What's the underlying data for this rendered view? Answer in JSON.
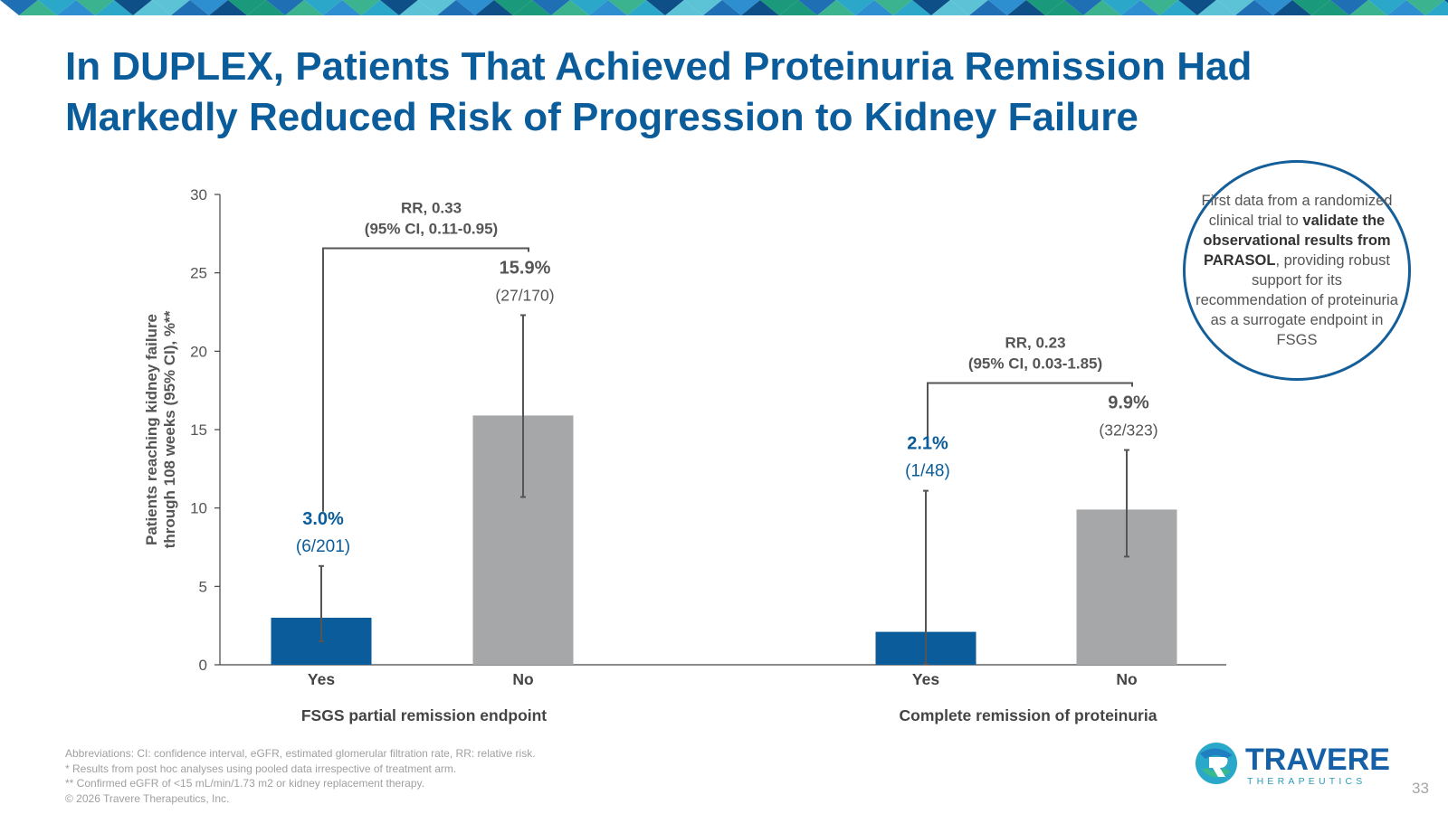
{
  "slide": {
    "title_line1": "In DUPLEX, Patients That Achieved Proteinuria Remission Had",
    "title_line2": "Markedly Reduced Risk of Progression to Kidney Failure",
    "page_number": "33"
  },
  "colors": {
    "title": "#0a5c9a",
    "yes_bar": "#0a5c9a",
    "no_bar": "#a6a7a9",
    "callout_border": "#145f99"
  },
  "callout": {
    "text_before": "First data from a randomized clinical trial to",
    "text_bold": "validate the observational results from PARASOL",
    "text_after": ", providing robust support for its recommendation of proteinuria as a surrogate endpoint in FSGS"
  },
  "footnotes": [
    "Abbreviations: CI: confidence interval, eGFR, estimated glomerular filtration rate, RR: relative risk.",
    "* Results from post hoc analyses using pooled data irrespective of treatment arm.",
    "** Confirmed eGFR of <15 mL/min/1.73 m2 or kidney replacement therapy.",
    "© 2026 Travere Therapeutics, Inc."
  ],
  "logo": {
    "name": "TRAVERE",
    "subtitle": "THERAPEUTICS",
    "icon": "travere-logo-icon"
  },
  "chart_data": {
    "type": "bar",
    "ylabel_line1": "Patients reaching kidney failure",
    "ylabel_line2": "through 108 weeks (95% CI), %**",
    "ylim": [
      0,
      30
    ],
    "yticks": [
      0,
      5,
      10,
      15,
      20,
      25,
      30
    ],
    "groups": [
      {
        "label": "FSGS partial remission endpoint",
        "rr_line1": "RR, 0.33",
        "rr_line2": "(95% CI, 0.11-0.95)",
        "bars": [
          {
            "category": "Yes",
            "value": 3.0,
            "ci_low": 1.5,
            "ci_high": 6.3,
            "value_label": "3.0%",
            "count_label": "(6/201)",
            "series": "yes"
          },
          {
            "category": "No",
            "value": 15.9,
            "ci_low": 10.7,
            "ci_high": 22.3,
            "value_label": "15.9%",
            "count_label": "(27/170)",
            "series": "no"
          }
        ]
      },
      {
        "label": "Complete remission of proteinuria",
        "rr_line1": "RR, 0.23",
        "rr_line2": "(95% CI, 0.03-1.85)",
        "bars": [
          {
            "category": "Yes",
            "value": 2.1,
            "ci_low": 0.05,
            "ci_high": 11.1,
            "value_label": "2.1%",
            "count_label": "(1/48)",
            "series": "yes"
          },
          {
            "category": "No",
            "value": 9.9,
            "ci_low": 6.9,
            "ci_high": 13.7,
            "value_label": "9.9%",
            "count_label": "(32/323)",
            "series": "no"
          }
        ]
      }
    ],
    "grid": false,
    "legend": "none"
  }
}
